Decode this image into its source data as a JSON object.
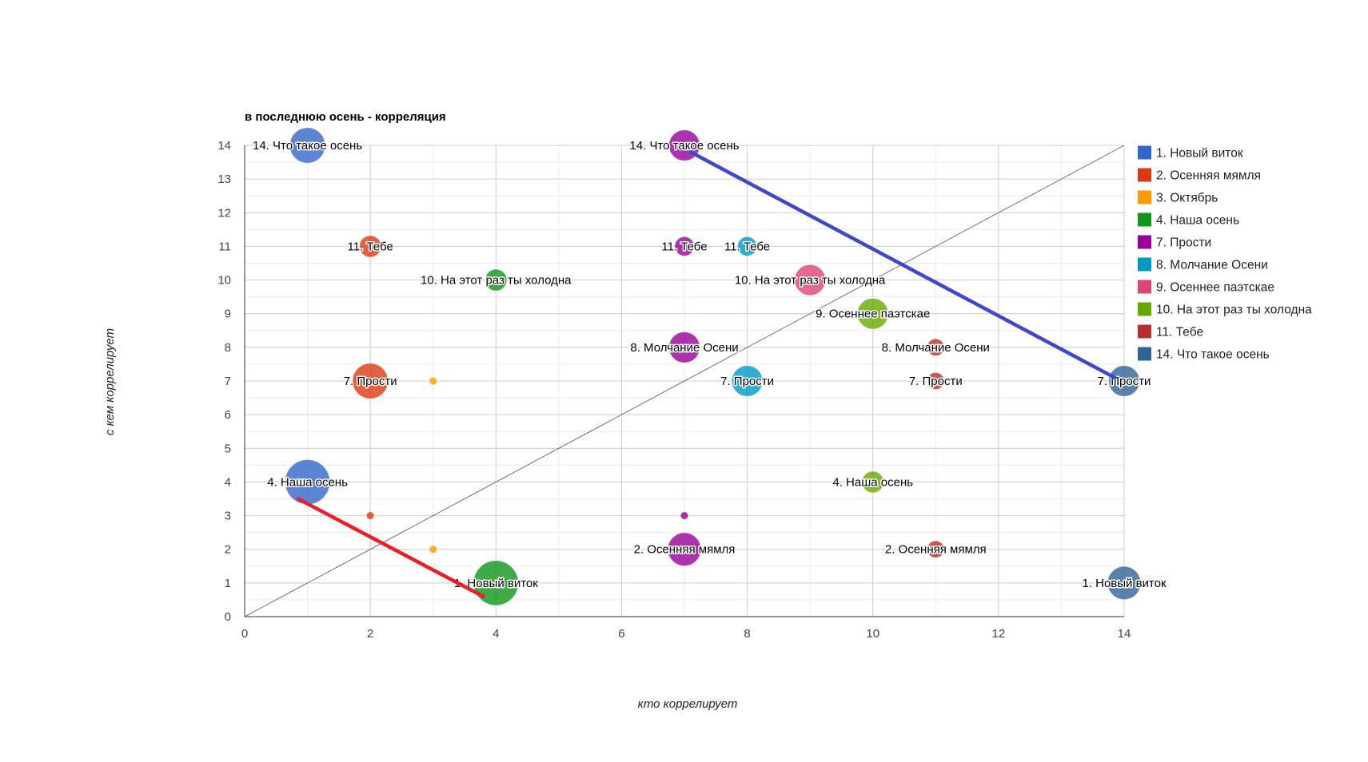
{
  "chart_data": {
    "type": "bubble",
    "title": "в последнюю осень - корреляция",
    "xlabel": "кто коррелирует",
    "ylabel": "с кем коррелирует",
    "xlim": [
      0,
      14
    ],
    "ylim": [
      0,
      14
    ],
    "x_ticks": [
      "0",
      "2",
      "4",
      "6",
      "8",
      "10",
      "12",
      "14"
    ],
    "y_ticks": [
      "0",
      "1",
      "2",
      "3",
      "4",
      "5",
      "6",
      "7",
      "8",
      "9",
      "10",
      "11",
      "12",
      "13",
      "14"
    ],
    "grid": true,
    "legend_position": "right",
    "series": [
      {
        "name": "1. Новый виток",
        "color": "#3366cc"
      },
      {
        "name": "2. Осенняя мямля",
        "color": "#dc3912"
      },
      {
        "name": "3. Октябрь",
        "color": "#ff9900"
      },
      {
        "name": "4. Наша осень",
        "color": "#109618"
      },
      {
        "name": "7. Прости",
        "color": "#990099"
      },
      {
        "name": "8. Молчание Осени",
        "color": "#0099c6"
      },
      {
        "name": "9. Осеннее паэтскае",
        "color": "#dd4477"
      },
      {
        "name": "10. На этот раз ты холодна",
        "color": "#66aa00"
      },
      {
        "name": "11. Тебе",
        "color": "#b82e2e"
      },
      {
        "name": "14. Что такое осень",
        "color": "#316395"
      }
    ],
    "points": [
      {
        "x": 1,
        "y": 14,
        "size": 7,
        "series": 0,
        "label": "14. Что такое осень"
      },
      {
        "x": 1,
        "y": 4,
        "size": 9,
        "series": 0,
        "label": "4. Наша осень"
      },
      {
        "x": 2,
        "y": 11,
        "size": 4,
        "series": 1,
        "label": "11. Тебе"
      },
      {
        "x": 2,
        "y": 7,
        "size": 7,
        "series": 1,
        "label": "7. Прости"
      },
      {
        "x": 2,
        "y": 3,
        "size": 1,
        "series": 1,
        "label": null
      },
      {
        "x": 3,
        "y": 7,
        "size": 1,
        "series": 2,
        "label": null
      },
      {
        "x": 3,
        "y": 2,
        "size": 1,
        "series": 2,
        "label": null
      },
      {
        "x": 4,
        "y": 10,
        "size": 4,
        "series": 3,
        "label": "10. На этот раз ты холодна"
      },
      {
        "x": 4,
        "y": 1,
        "size": 9,
        "series": 3,
        "label": "1. Новый виток"
      },
      {
        "x": 7,
        "y": 14,
        "size": 6,
        "series": 4,
        "label": "14. Что такое осень"
      },
      {
        "x": 7,
        "y": 11,
        "size": 3.5,
        "series": 4,
        "label": "11. Тебе"
      },
      {
        "x": 7,
        "y": 8,
        "size": 6,
        "series": 4,
        "label": "8. Молчание Осени"
      },
      {
        "x": 7,
        "y": 3,
        "size": 1,
        "series": 4,
        "label": null
      },
      {
        "x": 7,
        "y": 2,
        "size": 6.5,
        "series": 4,
        "label": "2. Осенняя мямля"
      },
      {
        "x": 8,
        "y": 11,
        "size": 3.5,
        "series": 5,
        "label": "11. Тебе"
      },
      {
        "x": 8,
        "y": 7,
        "size": 6,
        "series": 5,
        "label": "7. Прости"
      },
      {
        "x": 9,
        "y": 10,
        "size": 6,
        "series": 6,
        "label": "10. На этот раз ты холодна"
      },
      {
        "x": 10,
        "y": 9,
        "size": 6,
        "series": 7,
        "label": "9. Осеннее паэтскае"
      },
      {
        "x": 10,
        "y": 4,
        "size": 4,
        "series": 7,
        "label": "4. Наша осень"
      },
      {
        "x": 11,
        "y": 8,
        "size": 3,
        "series": 8,
        "label": "8. Молчание Осени"
      },
      {
        "x": 11,
        "y": 7,
        "size": 3,
        "series": 8,
        "label": "7. Прости"
      },
      {
        "x": 11,
        "y": 2,
        "size": 3,
        "series": 8,
        "label": "2. Осенняя мямля"
      },
      {
        "x": 14,
        "y": 7,
        "size": 6,
        "series": 9,
        "label": "7. Прости"
      },
      {
        "x": 14,
        "y": 1,
        "size": 6.5,
        "series": 9,
        "label": "1. Новый виток"
      }
    ],
    "reference_line": {
      "from": [
        0,
        0
      ],
      "to": [
        14,
        14
      ],
      "color": "#555555"
    },
    "annotations": [
      {
        "type": "line",
        "from": [
          0.85,
          3.5
        ],
        "to": [
          3.8,
          0.6
        ],
        "color": "#ee1c25"
      },
      {
        "type": "line",
        "from": [
          7.1,
          13.8
        ],
        "to": [
          13.85,
          7.1
        ],
        "color": "#3f48cc"
      }
    ]
  }
}
